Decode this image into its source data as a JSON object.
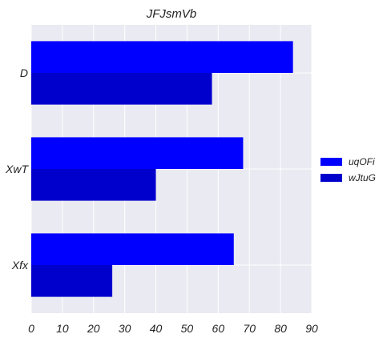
{
  "chart_data": {
    "type": "bar",
    "orientation": "horizontal",
    "title": "JFJsmVb",
    "categories": [
      "D",
      "XwT",
      "Xfx"
    ],
    "series": [
      {
        "name": "uqOFi",
        "values": [
          84,
          68,
          65
        ],
        "color": "#0000ff"
      },
      {
        "name": "wJtuG",
        "values": [
          58,
          40,
          26
        ],
        "color": "#0000cd"
      }
    ],
    "xlim": [
      0,
      90
    ],
    "xticks": [
      "0",
      "10",
      "20",
      "30",
      "40",
      "50",
      "60",
      "70",
      "80",
      "90"
    ],
    "grid": true,
    "legend_position": "right",
    "background_color": "#eaeaf2"
  }
}
